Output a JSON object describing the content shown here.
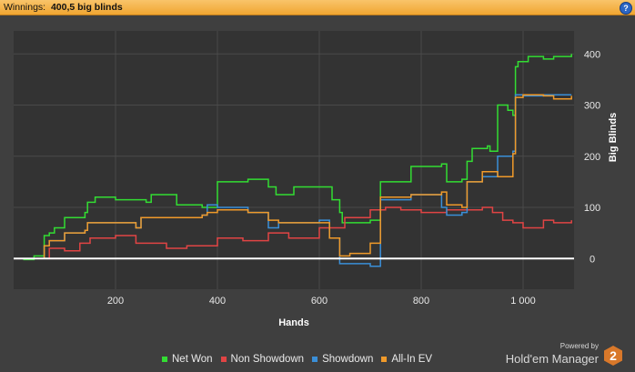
{
  "header": {
    "label": "Winnings:",
    "value": "400,5 big blinds",
    "help": "?"
  },
  "branding": {
    "powered": "Powered by",
    "name": "Hold'em Manager",
    "badge": "2"
  },
  "colors": {
    "background": "#3f3f3f",
    "plot_background": "#333333",
    "header": "#f0a531",
    "net_won": "#33dd33",
    "non_showdown": "#e14444",
    "showdown": "#3a8fd8",
    "all_in_ev": "#f09a2a",
    "zero_line": "#ffffff"
  },
  "chart_data": {
    "type": "line",
    "title": "",
    "xlabel": "Hands",
    "ylabel": "Big Blinds",
    "xlim": [
      0,
      1100
    ],
    "ylim": [
      -60,
      445
    ],
    "xticks": [
      200,
      400,
      600,
      800,
      1000
    ],
    "xtick_labels": [
      "200",
      "400",
      "600",
      "800",
      "1 000"
    ],
    "yticks": [
      0,
      100,
      200,
      300,
      400
    ],
    "ytick_labels": [
      "0",
      "100",
      "200",
      "300",
      "400"
    ],
    "y_axis_side": "right",
    "grid": true,
    "legend_position": "bottom",
    "series": [
      {
        "name": "Net Won",
        "color_key": "net_won",
        "points": [
          [
            0,
            0
          ],
          [
            20,
            -2
          ],
          [
            40,
            5
          ],
          [
            60,
            45
          ],
          [
            70,
            50
          ],
          [
            80,
            60
          ],
          [
            100,
            80
          ],
          [
            140,
            90
          ],
          [
            145,
            110
          ],
          [
            160,
            120
          ],
          [
            200,
            115
          ],
          [
            260,
            110
          ],
          [
            270,
            125
          ],
          [
            320,
            105
          ],
          [
            370,
            100
          ],
          [
            400,
            150
          ],
          [
            460,
            155
          ],
          [
            500,
            140
          ],
          [
            515,
            125
          ],
          [
            550,
            140
          ],
          [
            620,
            140
          ],
          [
            625,
            115
          ],
          [
            640,
            90
          ],
          [
            645,
            70
          ],
          [
            700,
            75
          ],
          [
            720,
            150
          ],
          [
            780,
            180
          ],
          [
            840,
            185
          ],
          [
            850,
            150
          ],
          [
            880,
            155
          ],
          [
            890,
            190
          ],
          [
            900,
            215
          ],
          [
            930,
            220
          ],
          [
            935,
            210
          ],
          [
            950,
            300
          ],
          [
            970,
            290
          ],
          [
            980,
            280
          ],
          [
            985,
            375
          ],
          [
            990,
            385
          ],
          [
            1010,
            395
          ],
          [
            1040,
            390
          ],
          [
            1060,
            395
          ],
          [
            1095,
            400
          ]
        ]
      },
      {
        "name": "Non Showdown",
        "color_key": "non_showdown",
        "points": [
          [
            0,
            0
          ],
          [
            50,
            0
          ],
          [
            70,
            20
          ],
          [
            100,
            15
          ],
          [
            130,
            30
          ],
          [
            150,
            40
          ],
          [
            200,
            45
          ],
          [
            240,
            30
          ],
          [
            300,
            20
          ],
          [
            340,
            25
          ],
          [
            400,
            40
          ],
          [
            450,
            35
          ],
          [
            500,
            50
          ],
          [
            540,
            40
          ],
          [
            600,
            60
          ],
          [
            650,
            80
          ],
          [
            700,
            95
          ],
          [
            730,
            100
          ],
          [
            760,
            95
          ],
          [
            800,
            90
          ],
          [
            850,
            95
          ],
          [
            900,
            95
          ],
          [
            920,
            100
          ],
          [
            940,
            90
          ],
          [
            960,
            75
          ],
          [
            980,
            70
          ],
          [
            1000,
            60
          ],
          [
            1040,
            75
          ],
          [
            1060,
            70
          ],
          [
            1095,
            75
          ]
        ]
      },
      {
        "name": "Showdown",
        "color_key": "showdown",
        "points": [
          [
            0,
            0
          ],
          [
            50,
            0
          ],
          [
            60,
            25
          ],
          [
            70,
            35
          ],
          [
            100,
            50
          ],
          [
            140,
            55
          ],
          [
            145,
            70
          ],
          [
            200,
            70
          ],
          [
            240,
            60
          ],
          [
            250,
            80
          ],
          [
            350,
            80
          ],
          [
            370,
            85
          ],
          [
            380,
            105
          ],
          [
            400,
            100
          ],
          [
            460,
            90
          ],
          [
            500,
            60
          ],
          [
            520,
            70
          ],
          [
            600,
            75
          ],
          [
            620,
            40
          ],
          [
            640,
            -10
          ],
          [
            700,
            -15
          ],
          [
            720,
            115
          ],
          [
            780,
            125
          ],
          [
            840,
            100
          ],
          [
            850,
            85
          ],
          [
            880,
            90
          ],
          [
            890,
            150
          ],
          [
            920,
            160
          ],
          [
            950,
            200
          ],
          [
            980,
            210
          ],
          [
            985,
            320
          ],
          [
            1000,
            318
          ],
          [
            1040,
            320
          ],
          [
            1095,
            320
          ]
        ]
      },
      {
        "name": "All-In EV",
        "color_key": "all_in_ev",
        "points": [
          [
            0,
            0
          ],
          [
            50,
            0
          ],
          [
            60,
            25
          ],
          [
            70,
            35
          ],
          [
            100,
            50
          ],
          [
            140,
            55
          ],
          [
            145,
            70
          ],
          [
            200,
            70
          ],
          [
            240,
            60
          ],
          [
            250,
            80
          ],
          [
            350,
            80
          ],
          [
            370,
            85
          ],
          [
            380,
            90
          ],
          [
            400,
            95
          ],
          [
            460,
            90
          ],
          [
            500,
            75
          ],
          [
            520,
            70
          ],
          [
            600,
            70
          ],
          [
            620,
            40
          ],
          [
            640,
            5
          ],
          [
            660,
            10
          ],
          [
            700,
            30
          ],
          [
            720,
            120
          ],
          [
            780,
            125
          ],
          [
            840,
            130
          ],
          [
            850,
            105
          ],
          [
            880,
            100
          ],
          [
            890,
            150
          ],
          [
            920,
            170
          ],
          [
            950,
            160
          ],
          [
            980,
            205
          ],
          [
            985,
            315
          ],
          [
            1000,
            320
          ],
          [
            1040,
            318
          ],
          [
            1060,
            312
          ],
          [
            1095,
            318
          ]
        ]
      }
    ]
  }
}
